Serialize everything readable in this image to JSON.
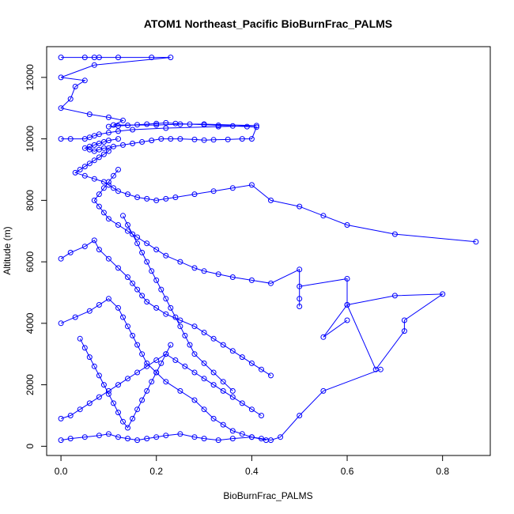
{
  "chart_data": {
    "type": "line",
    "title": "ATOM1 Northeast_Pacific BioBurnFrac_PALMS",
    "xlabel": "BioBurnFrac_PALMS",
    "ylabel": "Altitude (m)",
    "xlim": [
      -0.03,
      0.9
    ],
    "ylim": [
      -300,
      13000
    ],
    "xticks": [
      0.0,
      0.2,
      0.4,
      0.6,
      0.8
    ],
    "yticks": [
      0,
      2000,
      4000,
      6000,
      8000,
      10000,
      12000
    ],
    "xtick_labels": [
      "0.0",
      "0.2",
      "0.4",
      "0.6",
      "0.8"
    ],
    "ytick_labels": [
      "0",
      "2000",
      "4000",
      "6000",
      "8000",
      "10000",
      "12000"
    ],
    "marker": "open-circle",
    "color": "#0000ff",
    "series": [
      {
        "x": [
          0.0,
          0.05,
          0.07,
          0.08,
          0.12,
          0.19,
          0.23,
          0.07,
          0.0,
          0.05,
          0.03,
          0.02,
          0.0,
          0.06,
          0.1,
          0.13,
          0.11,
          0.2,
          0.25,
          0.3,
          0.41,
          0.33,
          0.22,
          0.15,
          0.12,
          0.1,
          0.08,
          0.07,
          0.06,
          0.05,
          0.02,
          0.0
        ],
        "y": [
          12650,
          12650,
          12650,
          12650,
          12650,
          12650,
          12650,
          12400,
          12000,
          11900,
          11700,
          11300,
          11000,
          10800,
          10700,
          10600,
          10450,
          10450,
          10480,
          10480,
          10430,
          10400,
          10350,
          10300,
          10250,
          10200,
          10150,
          10100,
          10050,
          10000,
          10000,
          10000
        ]
      },
      {
        "x": [
          0.12,
          0.1,
          0.09,
          0.08,
          0.07,
          0.06,
          0.05,
          0.06,
          0.07,
          0.08,
          0.09,
          0.1,
          0.11,
          0.13,
          0.15,
          0.17,
          0.19,
          0.21,
          0.23,
          0.25,
          0.28,
          0.3,
          0.32,
          0.35,
          0.38,
          0.4,
          0.41,
          0.39,
          0.36,
          0.33,
          0.3,
          0.27,
          0.24,
          0.22,
          0.2,
          0.18,
          0.16,
          0.14,
          0.12,
          0.1
        ],
        "y": [
          10000,
          9950,
          9900,
          9850,
          9800,
          9750,
          9700,
          9650,
          9600,
          9650,
          9700,
          9700,
          9750,
          9800,
          9850,
          9900,
          9950,
          10000,
          10000,
          10000,
          9980,
          9960,
          9970,
          9980,
          10000,
          10000,
          10380,
          10400,
          10420,
          10440,
          10460,
          10480,
          10500,
          10520,
          10500,
          10480,
          10460,
          10440,
          10420,
          10400
        ]
      },
      {
        "x": [
          0.1,
          0.09,
          0.08,
          0.07,
          0.06,
          0.05,
          0.04,
          0.03,
          0.05,
          0.07,
          0.09,
          0.1,
          0.11,
          0.12,
          0.14,
          0.16,
          0.18,
          0.2,
          0.22,
          0.24,
          0.28,
          0.32,
          0.36,
          0.4,
          0.44,
          0.5,
          0.55,
          0.6,
          0.7,
          0.87
        ],
        "y": [
          9600,
          9500,
          9400,
          9300,
          9200,
          9100,
          9000,
          8900,
          8800,
          8700,
          8600,
          8500,
          8400,
          8300,
          8200,
          8100,
          8050,
          8000,
          8050,
          8100,
          8200,
          8300,
          8400,
          8500,
          8000,
          7800,
          7500,
          7200,
          6900,
          6650
        ]
      },
      {
        "x": [
          0.12,
          0.11,
          0.1,
          0.09,
          0.08,
          0.07,
          0.08,
          0.09,
          0.1,
          0.12,
          0.14,
          0.16,
          0.18,
          0.2,
          0.22,
          0.25,
          0.28,
          0.3,
          0.33,
          0.36,
          0.4,
          0.44,
          0.5,
          0.5,
          0.5,
          0.5,
          0.6,
          0.6,
          0.7,
          0.8,
          0.72,
          0.72,
          0.66,
          0.6,
          0.55,
          0.6
        ],
        "y": [
          9000,
          8800,
          8600,
          8400,
          8200,
          8000,
          7800,
          7600,
          7400,
          7200,
          7000,
          6800,
          6600,
          6400,
          6200,
          6000,
          5800,
          5700,
          5600,
          5500,
          5400,
          5300,
          5750,
          4800,
          4550,
          5200,
          5450,
          4600,
          4900,
          4950,
          4100,
          3750,
          2500,
          4600,
          3550,
          4100
        ]
      },
      {
        "x": [
          0.0,
          0.02,
          0.05,
          0.07,
          0.08,
          0.1,
          0.12,
          0.14,
          0.15,
          0.16,
          0.17,
          0.18,
          0.2,
          0.22,
          0.25,
          0.28,
          0.3,
          0.32,
          0.34,
          0.36,
          0.38,
          0.4,
          0.42,
          0.44
        ],
        "y": [
          6100,
          6300,
          6500,
          6700,
          6400,
          6100,
          5800,
          5500,
          5300,
          5100,
          4900,
          4700,
          4500,
          4300,
          4100,
          3900,
          3700,
          3500,
          3300,
          3100,
          2900,
          2700,
          2500,
          2300
        ]
      },
      {
        "x": [
          0.0,
          0.03,
          0.06,
          0.08,
          0.1,
          0.12,
          0.13,
          0.14,
          0.15,
          0.16,
          0.17,
          0.18,
          0.2,
          0.22,
          0.25,
          0.28,
          0.3,
          0.32,
          0.34,
          0.36,
          0.38,
          0.4,
          0.42,
          0.44,
          0.46,
          0.5,
          0.55,
          0.67
        ],
        "y": [
          4000,
          4200,
          4400,
          4600,
          4800,
          4500,
          4200,
          3900,
          3600,
          3300,
          3000,
          2700,
          2400,
          2100,
          1800,
          1500,
          1200,
          900,
          700,
          500,
          400,
          300,
          250,
          200,
          300,
          1000,
          1800,
          2500
        ]
      },
      {
        "x": [
          0.0,
          0.02,
          0.04,
          0.06,
          0.08,
          0.1,
          0.12,
          0.14,
          0.16,
          0.18,
          0.2,
          0.22,
          0.24,
          0.26,
          0.28,
          0.3,
          0.32,
          0.34,
          0.36,
          0.38,
          0.4,
          0.42
        ],
        "y": [
          900,
          1000,
          1200,
          1400,
          1600,
          1800,
          2000,
          2200,
          2400,
          2600,
          2800,
          3000,
          2800,
          2600,
          2400,
          2200,
          2000,
          1800,
          1600,
          1400,
          1200,
          1000
        ]
      },
      {
        "x": [
          0.0,
          0.02,
          0.05,
          0.08,
          0.1,
          0.12,
          0.14,
          0.16,
          0.18,
          0.2,
          0.22,
          0.25,
          0.28,
          0.3,
          0.33,
          0.36,
          0.4,
          0.43
        ],
        "y": [
          200,
          250,
          300,
          350,
          400,
          300,
          250,
          200,
          250,
          300,
          350,
          400,
          300,
          250,
          200,
          250,
          300,
          200
        ]
      },
      {
        "x": [
          0.04,
          0.05,
          0.06,
          0.07,
          0.08,
          0.09,
          0.1,
          0.11,
          0.12,
          0.13,
          0.14,
          0.15,
          0.16,
          0.17,
          0.18,
          0.19,
          0.2,
          0.21,
          0.22,
          0.23
        ],
        "y": [
          3500,
          3200,
          2900,
          2600,
          2300,
          2000,
          1700,
          1400,
          1100,
          800,
          600,
          900,
          1200,
          1500,
          1800,
          2100,
          2400,
          2700,
          3000,
          3300
        ]
      },
      {
        "x": [
          0.13,
          0.14,
          0.15,
          0.16,
          0.17,
          0.18,
          0.19,
          0.2,
          0.21,
          0.22,
          0.23,
          0.24,
          0.25,
          0.26,
          0.27,
          0.28,
          0.3,
          0.32,
          0.34,
          0.36
        ],
        "y": [
          7500,
          7200,
          6900,
          6600,
          6300,
          6000,
          5700,
          5400,
          5100,
          4800,
          4500,
          4200,
          3900,
          3600,
          3300,
          3000,
          2700,
          2400,
          2100,
          1800
        ]
      }
    ]
  }
}
